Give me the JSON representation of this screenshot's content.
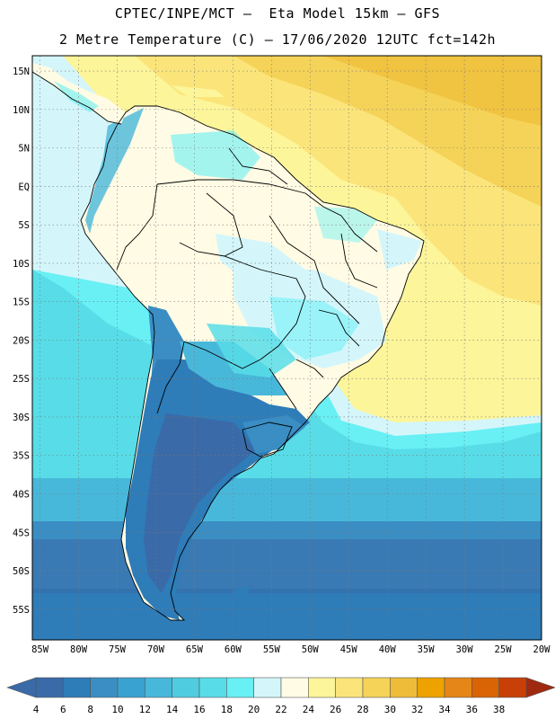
{
  "header": {
    "title_line1": "CPTEC/INPE/MCT –  Eta Model 15km – GFS",
    "title_line2": "2 Metre Temperature (C) – 17/06/2020 12UTC fct=142h"
  },
  "map": {
    "lat_labels": [
      "15N",
      "10N",
      "5N",
      "EQ",
      "5S",
      "10S",
      "15S",
      "20S",
      "25S",
      "30S",
      "35S",
      "40S",
      "45S",
      "50S",
      "55S"
    ],
    "lat_values": [
      15,
      10,
      5,
      0,
      -5,
      -10,
      -15,
      -20,
      -25,
      -30,
      -35,
      -40,
      -45,
      -50,
      -55
    ],
    "lon_labels": [
      "85W",
      "80W",
      "75W",
      "70W",
      "65W",
      "60W",
      "55W",
      "50W",
      "45W",
      "40W",
      "35W",
      "30W",
      "25W",
      "20W"
    ],
    "lon_values": [
      -85,
      -80,
      -75,
      -70,
      -65,
      -60,
      -55,
      -50,
      -45,
      -40,
      -35,
      -30,
      -25,
      -20
    ],
    "lon_range": [
      -86,
      -20
    ],
    "lat_range": [
      -59,
      17
    ]
  },
  "colorbar": {
    "labels": [
      "4",
      "6",
      "8",
      "10",
      "12",
      "14",
      "16",
      "18",
      "20",
      "22",
      "24",
      "26",
      "28",
      "30",
      "32",
      "34",
      "36",
      "38"
    ],
    "colors": [
      "#3a6aa8",
      "#2e7cb8",
      "#3a8ec4",
      "#3aa2d0",
      "#48b8da",
      "#50cce0",
      "#58dde8",
      "#68f0f5",
      "#d4f6fa",
      "#fffbe4",
      "#fdf59a",
      "#fbe57a",
      "#f5d358",
      "#eebc38",
      "#eda200",
      "#e48618",
      "#d96406",
      "#c84008",
      "#a02a10"
    ]
  }
}
